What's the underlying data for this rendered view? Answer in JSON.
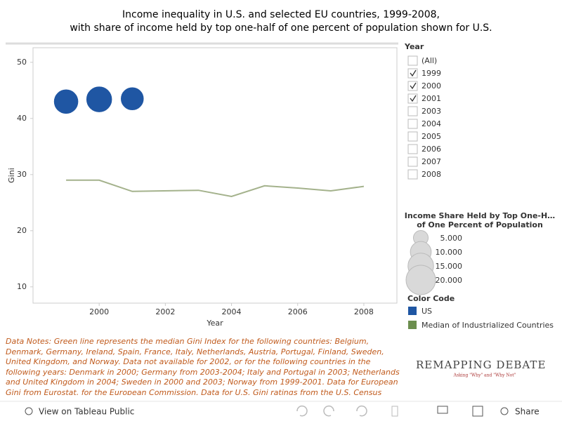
{
  "chart_data": {
    "type": "combo",
    "title": [
      "Income inequality in U.S. and selected EU countries, 1999-2008,",
      "with share of income held by top one-half of one percent of population shown for U.S."
    ],
    "xlabel": "Year",
    "ylabel": "Gini",
    "xlim": [
      1998,
      2009
    ],
    "xticks": [
      2000,
      2002,
      2004,
      2006,
      2008
    ],
    "ylim": [
      7.1,
      52.6
    ],
    "yticks": [
      10,
      20,
      30,
      40,
      50
    ],
    "series": [
      {
        "name": "US",
        "type": "bubble",
        "color": "#1f56a3",
        "x": [
          1999,
          2000,
          2001
        ],
        "values": [
          43,
          43.4,
          43.5
        ],
        "sizes": [
          14.7,
          16.3,
          13.1
        ]
      },
      {
        "name": "Median of Industrialized Countries",
        "type": "line",
        "color": "#a4b28c",
        "legend_color": "#6b8e4e",
        "x": [
          1999,
          2000,
          2001,
          2003,
          2004,
          2005,
          2006,
          2007,
          2008
        ],
        "values": [
          29,
          29,
          27,
          27.2,
          26.1,
          28,
          27.6,
          27.1,
          27.9
        ]
      }
    ],
    "size_legend": {
      "title": [
        "Income Share Held by Top One-H…",
        "of One Percent of Population"
      ],
      "values": [
        {
          "value": 5,
          "label": "5.000"
        },
        {
          "value": 10,
          "label": "10.000"
        },
        {
          "value": 15,
          "label": "15.000"
        },
        {
          "value": 20,
          "label": "20.000"
        }
      ]
    },
    "color_legend_title": "Color Code"
  },
  "year_filter": {
    "title": "Year",
    "options": [
      {
        "label": "(All)",
        "checked": false
      },
      {
        "label": "1999",
        "checked": true
      },
      {
        "label": "2000",
        "checked": true
      },
      {
        "label": "2001",
        "checked": true
      },
      {
        "label": "2003",
        "checked": false
      },
      {
        "label": "2004",
        "checked": false
      },
      {
        "label": "2005",
        "checked": false
      },
      {
        "label": "2006",
        "checked": false
      },
      {
        "label": "2007",
        "checked": false
      },
      {
        "label": "2008",
        "checked": false
      }
    ]
  },
  "notes": "Data Notes: Green line represents the median Gini Index for the following countries: Belgium, Denmark, Germany, Ireland, Spain, France, Italy, Netherlands, Austria, Portugal, Finland, Sweden, United Kingdom, and Norway. Data not available for 2002, or for the following countries in the following years: Denmark in 2000; Germany from 2003-2004; Italy and Portugal in 2003; Netherlands and United Kingdom in 2004; Sweden in 2000 and 2003; Norway from 1999-2001. Data for European Gini from Eurostat, for the European Commission. Data for U.S. Gini ratings from the U.S. Census Bureau.",
  "brand": {
    "name": "REMAPPING DEBATE",
    "tagline": "Asking \"Why\" and \"Why Not\""
  },
  "toolbar": {
    "view": "View on Tableau Public",
    "share": "Share"
  }
}
